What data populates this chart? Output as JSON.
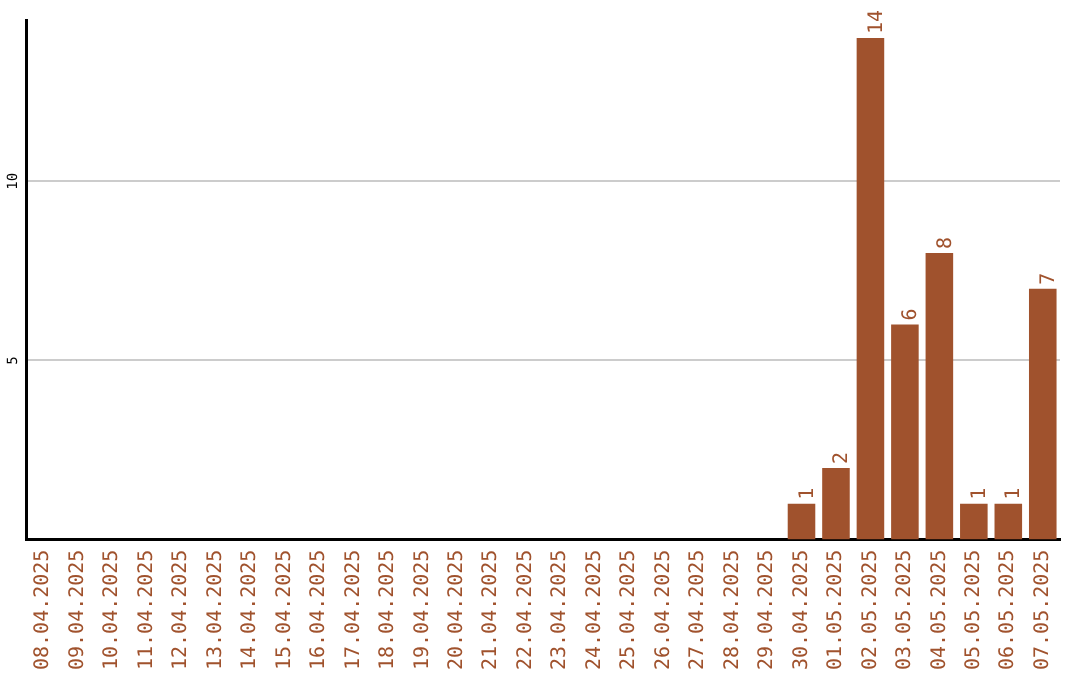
{
  "chart_data": {
    "type": "bar",
    "categories": [
      "08.04.2025",
      "09.04.2025",
      "10.04.2025",
      "11.04.2025",
      "12.04.2025",
      "13.04.2025",
      "14.04.2025",
      "15.04.2025",
      "16.04.2025",
      "17.04.2025",
      "18.04.2025",
      "19.04.2025",
      "20.04.2025",
      "21.04.2025",
      "22.04.2025",
      "23.04.2025",
      "24.04.2025",
      "25.04.2025",
      "26.04.2025",
      "27.04.2025",
      "28.04.2025",
      "29.04.2025",
      "30.04.2025",
      "01.05.2025",
      "02.05.2025",
      "03.05.2025",
      "04.05.2025",
      "05.05.2025",
      "06.05.2025",
      "07.05.2025"
    ],
    "values": [
      0,
      0,
      0,
      0,
      0,
      0,
      0,
      0,
      0,
      0,
      0,
      0,
      0,
      0,
      0,
      0,
      0,
      0,
      0,
      0,
      0,
      0,
      1,
      2,
      14,
      6,
      8,
      1,
      1,
      7
    ],
    "value_labels": [
      null,
      null,
      null,
      null,
      null,
      null,
      null,
      null,
      null,
      null,
      null,
      null,
      null,
      null,
      null,
      null,
      null,
      null,
      null,
      null,
      null,
      null,
      "1",
      "2",
      "14",
      "6",
      "8",
      "1",
      "1",
      "7"
    ],
    "color": "#a0522d",
    "ylim": [
      0,
      14.5
    ],
    "yticks": [
      5,
      10
    ],
    "grid": "y",
    "legend": false
  }
}
